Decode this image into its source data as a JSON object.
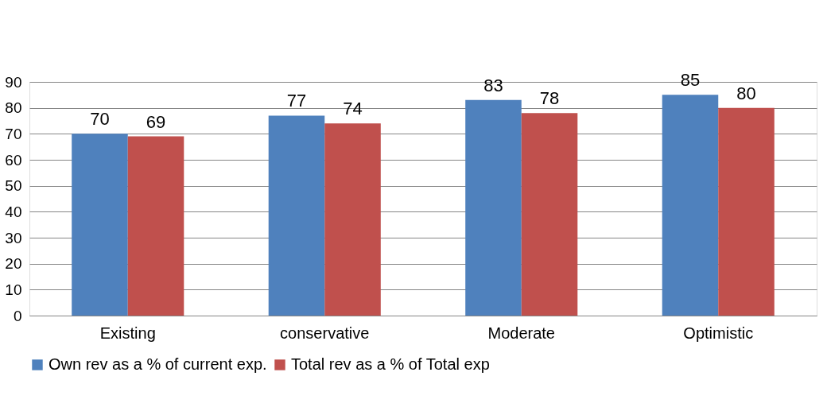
{
  "chart_data": {
    "type": "bar",
    "categories": [
      "Existing",
      "conservative",
      "Moderate",
      "Optimistic"
    ],
    "series": [
      {
        "name": "Own rev as a % of current exp.",
        "color": "#4f81bd",
        "values": [
          70,
          77,
          83,
          85
        ]
      },
      {
        "name": "Total rev as a % of Total exp",
        "color": "#c0504d",
        "values": [
          69,
          74,
          78,
          80
        ]
      }
    ],
    "ylim": [
      0,
      90
    ],
    "yticks": [
      0,
      10,
      20,
      30,
      40,
      50,
      60,
      70,
      80,
      90
    ],
    "grid": "y",
    "legend": "bottom",
    "data_labels": true
  }
}
